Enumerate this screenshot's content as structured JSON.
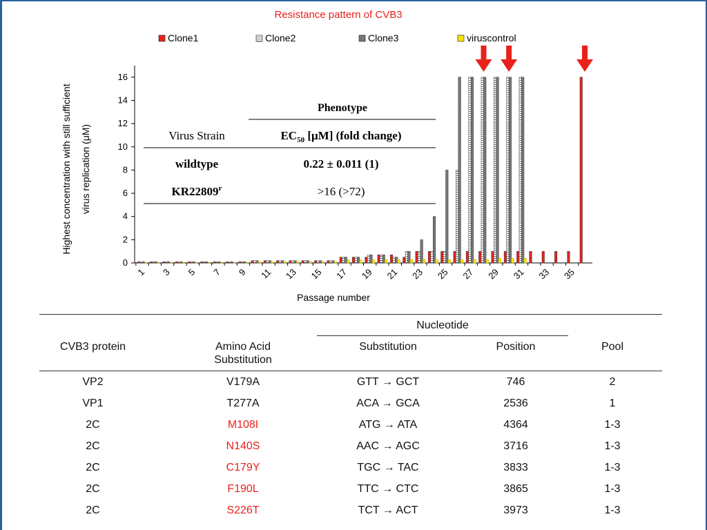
{
  "chart_data": {
    "type": "bar",
    "title": "Resistance pattern of CVB3",
    "xlabel": "Passage number",
    "ylabel": "Highest concentration with still sufficient virus replication (μM)",
    "ylabel_lines": [
      "Highest concentration with still sufficient",
      "virus replication (μM)"
    ],
    "ylim": [
      0,
      17
    ],
    "yticks": [
      0,
      2,
      4,
      6,
      8,
      10,
      12,
      14,
      16
    ],
    "x_tick_labels": [
      "1",
      "3",
      "5",
      "7",
      "9",
      "11",
      "13",
      "15",
      "17",
      "19",
      "21",
      "23",
      "25",
      "27",
      "29",
      "31",
      "33",
      "35"
    ],
    "categories": [
      1,
      2,
      3,
      4,
      5,
      6,
      7,
      8,
      9,
      10,
      11,
      12,
      13,
      14,
      15,
      16,
      17,
      18,
      19,
      20,
      21,
      22,
      23,
      24,
      25,
      26,
      27,
      28,
      29,
      30,
      31,
      32,
      33,
      34,
      35,
      36
    ],
    "legend_position": "top",
    "series": [
      {
        "name": "Clone1",
        "color": "#e8211b",
        "pattern": "solid",
        "values": [
          0.1,
          0.1,
          0.1,
          0.1,
          0.1,
          0.1,
          0.1,
          0.1,
          0.1,
          0.2,
          0.2,
          0.2,
          0.2,
          0.2,
          0.2,
          0.2,
          0.5,
          0.5,
          0.5,
          0.7,
          0.7,
          0.5,
          1,
          1,
          1,
          1,
          1,
          1,
          1,
          1,
          1,
          1,
          1,
          1,
          1,
          16
        ]
      },
      {
        "name": "Clone2",
        "color": "#555555",
        "pattern": "hatched-light",
        "values": [
          0.1,
          0.1,
          0.1,
          0.1,
          0.1,
          0.1,
          0.1,
          0.1,
          0.1,
          0.2,
          0.2,
          0.2,
          0.2,
          0.2,
          0.2,
          0.2,
          0.5,
          0.5,
          0.7,
          0.7,
          0.5,
          1,
          1,
          1,
          1,
          8,
          16,
          16,
          16,
          16,
          16,
          null,
          null,
          null,
          null,
          null
        ]
      },
      {
        "name": "Clone3",
        "color": "#555555",
        "pattern": "hatched-dark",
        "values": [
          0.1,
          0.1,
          0.1,
          0.1,
          0.1,
          0.1,
          0.1,
          0.1,
          0.1,
          0.2,
          0.2,
          0.2,
          0.2,
          0.2,
          0.2,
          0.2,
          0.5,
          0.5,
          0.7,
          0.7,
          0.5,
          1,
          2,
          4,
          8,
          16,
          16,
          16,
          16,
          16,
          16,
          null,
          null,
          null,
          null,
          null
        ]
      },
      {
        "name": "viruscontrol",
        "color": "#f5e600",
        "pattern": "solid",
        "values": [
          0.05,
          0.05,
          0.05,
          0.05,
          0.05,
          0.05,
          0.05,
          0.05,
          0.05,
          0.1,
          0.1,
          0.1,
          0.1,
          0.1,
          0.1,
          0.1,
          0.25,
          0.25,
          0.25,
          0.3,
          0.3,
          0.3,
          0.3,
          0.3,
          0.3,
          0.3,
          0.3,
          0.3,
          0.4,
          0.4,
          0.4,
          null,
          null,
          null,
          null,
          null
        ]
      }
    ],
    "arrow_passages": [
      28,
      30,
      36
    ],
    "inset_table": {
      "group_header": "Phenotype",
      "col1_header": "Virus Strain",
      "col2_header_pre": "EC",
      "col2_header_sub": "50",
      "col2_header_post": " [μM] (fold change)",
      "rows": [
        {
          "strain": "wildtype",
          "strain_sup": "",
          "value": "0.22 ± 0.011 (1)"
        },
        {
          "strain": "KR22809",
          "strain_sup": "r",
          "value": ">16 (>72)"
        }
      ]
    }
  },
  "mutation_table": {
    "group_header": "Nucleotide",
    "headers": {
      "protein": "CVB3 protein",
      "aa_line1": "Amino Acid",
      "aa_line2": "Substitution",
      "substitution": "Substitution",
      "position": "Position",
      "pool": "Pool"
    },
    "arrow_glyph": "→",
    "rows": [
      {
        "protein": "VP2",
        "aa": "V179A",
        "aa_red": false,
        "from": "GTT",
        "to": "GCT",
        "position": "746",
        "pool": "2"
      },
      {
        "protein": "VP1",
        "aa": "T277A",
        "aa_red": false,
        "from": "ACA",
        "to": "GCA",
        "position": "2536",
        "pool": "1"
      },
      {
        "protein": "2C",
        "aa": "M108I",
        "aa_red": true,
        "from": "ATG",
        "to": "ATA",
        "position": "4364",
        "pool": "1-3"
      },
      {
        "protein": "2C",
        "aa": "N140S",
        "aa_red": true,
        "from": "AAC",
        "to": "AGC",
        "position": "3716",
        "pool": "1-3"
      },
      {
        "protein": "2C",
        "aa": "C179Y",
        "aa_red": true,
        "from": "TGC",
        "to": "TAC",
        "position": "3833",
        "pool": "1-3"
      },
      {
        "protein": "2C",
        "aa": "F190L",
        "aa_red": true,
        "from": "TTC",
        "to": "CTC",
        "position": "3865",
        "pool": "1-3"
      },
      {
        "protein": "2C",
        "aa": "S226T",
        "aa_red": true,
        "from": "TCT",
        "to": "ACT",
        "position": "3973",
        "pool": "1-3"
      }
    ]
  }
}
